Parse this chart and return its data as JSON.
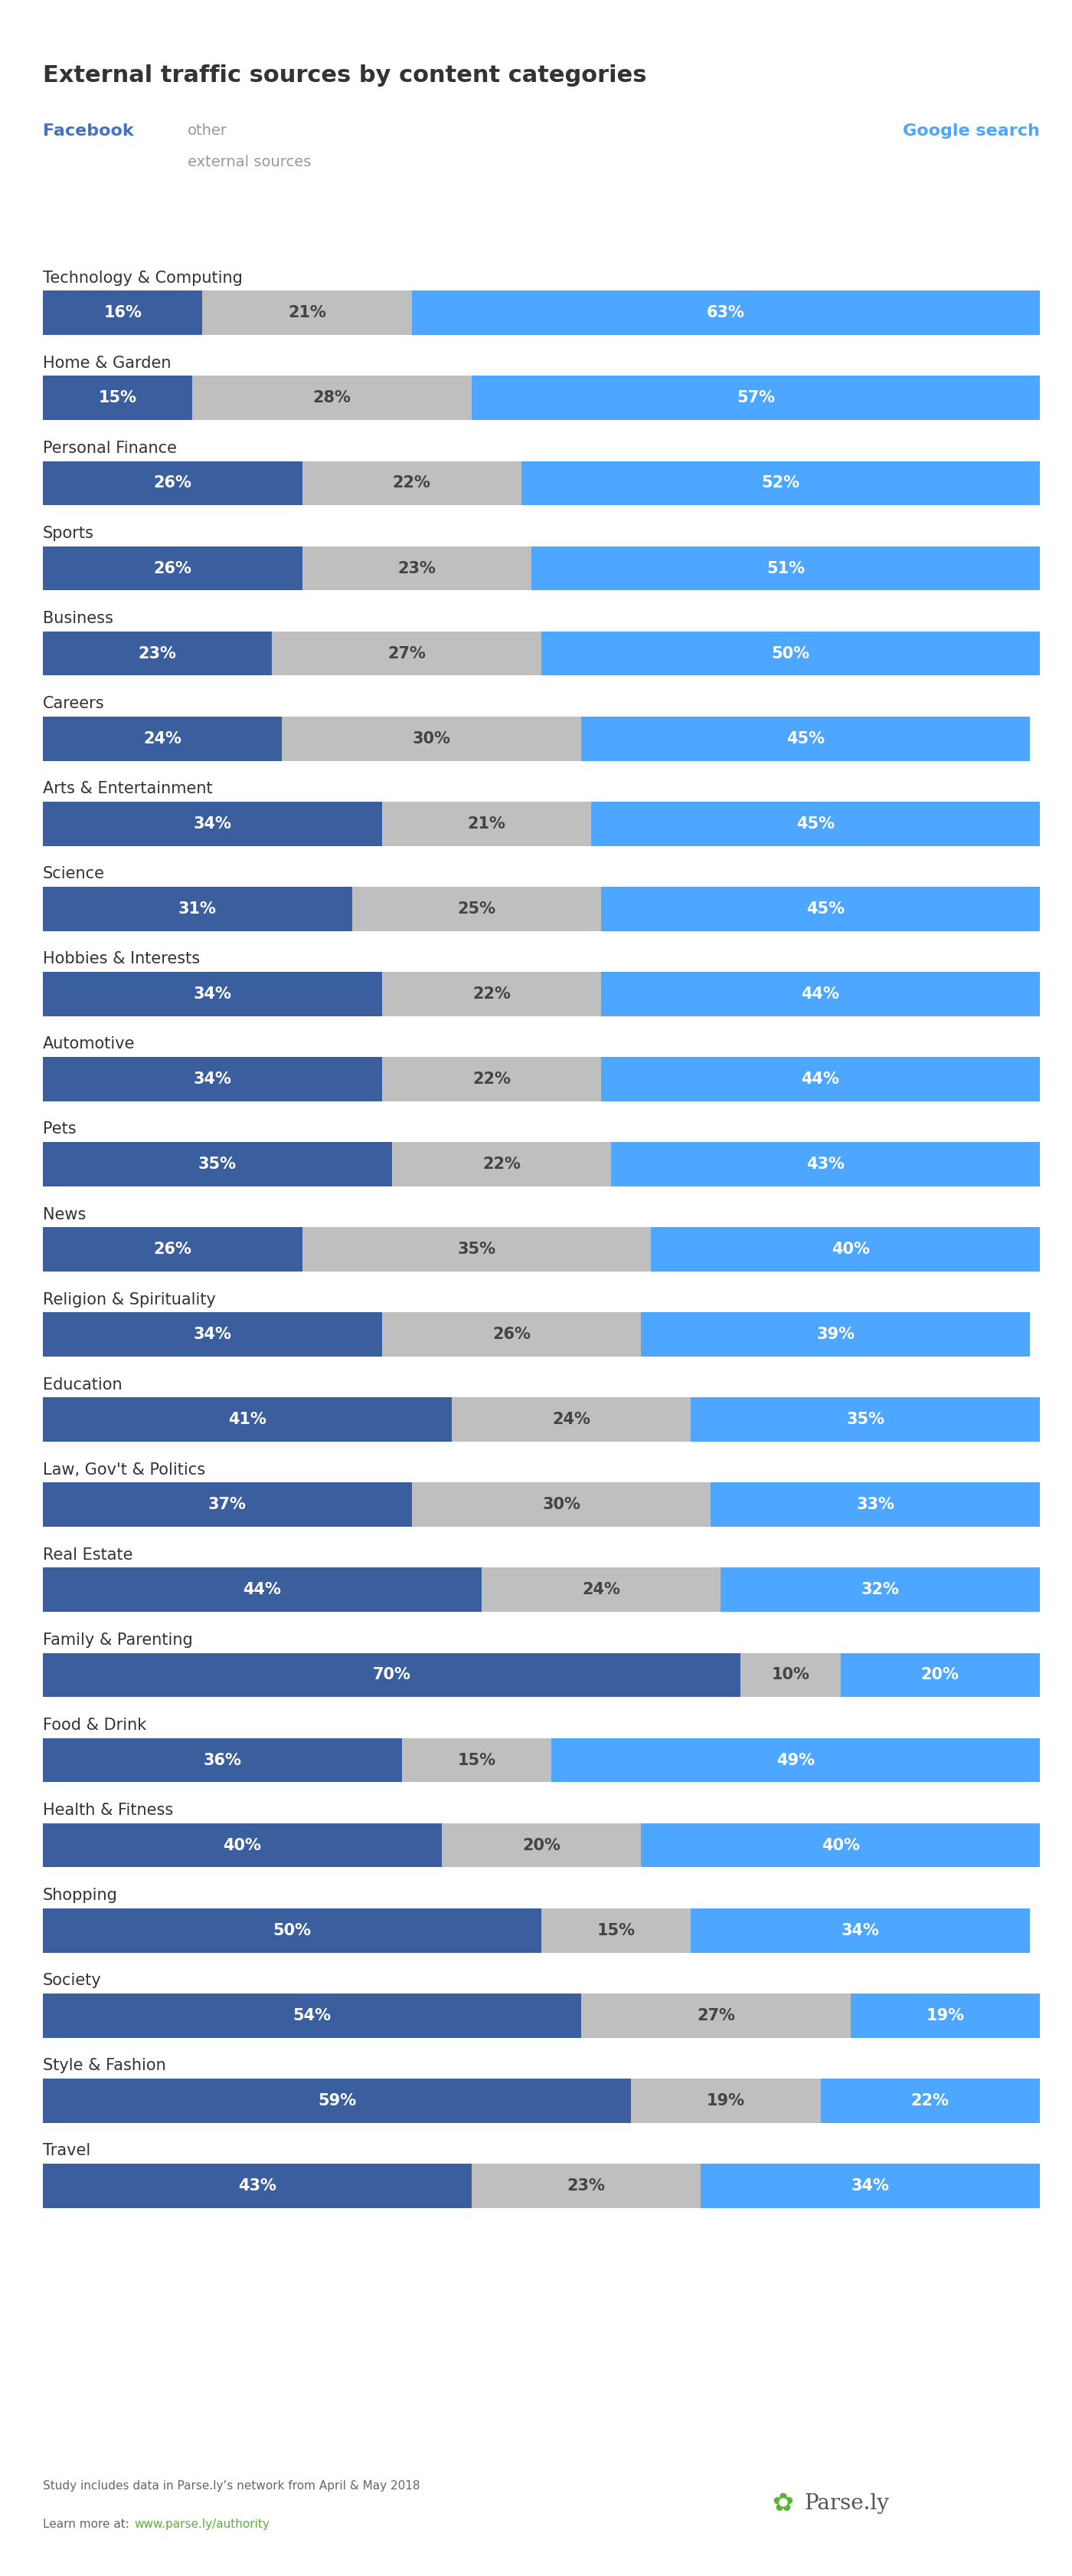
{
  "title": "External traffic sources by content categories",
  "legend": {
    "facebook_label": "Facebook",
    "other_line1": "other",
    "other_line2": "external sources",
    "google_label": "Google search"
  },
  "categories": [
    "Technology & Computing",
    "Home & Garden",
    "Personal Finance",
    "Sports",
    "Business",
    "Careers",
    "Arts & Entertainment",
    "Science",
    "Hobbies & Interests",
    "Automotive",
    "Pets",
    "News",
    "Religion & Spirituality",
    "Education",
    "Law, Gov't & Politics",
    "Real Estate",
    "Family & Parenting",
    "Food & Drink",
    "Health & Fitness",
    "Shopping",
    "Society",
    "Style & Fashion",
    "Travel"
  ],
  "facebook": [
    16,
    15,
    26,
    26,
    23,
    24,
    34,
    31,
    34,
    34,
    35,
    26,
    34,
    41,
    37,
    44,
    70,
    36,
    40,
    50,
    54,
    59,
    43
  ],
  "other": [
    21,
    28,
    22,
    23,
    27,
    30,
    21,
    25,
    22,
    22,
    22,
    35,
    26,
    24,
    30,
    24,
    10,
    15,
    20,
    15,
    27,
    19,
    23
  ],
  "google": [
    63,
    57,
    52,
    51,
    50,
    45,
    45,
    45,
    44,
    44,
    43,
    40,
    39,
    35,
    33,
    32,
    20,
    49,
    40,
    34,
    19,
    22,
    34
  ],
  "facebook_color": "#3b5f9e",
  "other_color": "#c0bfc0",
  "google_color": "#4da6ff",
  "bg_color": "#ffffff",
  "footer_bg": "#e8e8e8",
  "title_color": "#333333",
  "category_color": "#333333",
  "facebook_legend_color": "#4472c4",
  "other_legend_color": "#999999",
  "google_legend_color": "#4da6ff",
  "pct_fb_color": "#ffffff",
  "pct_ot_color": "#444444",
  "pct_gg_color": "#ffffff",
  "bar_height": 0.52,
  "category_fontsize": 15,
  "pct_fontsize": 15,
  "title_fontsize": 22,
  "legend_fontsize": 16,
  "footer_text1": "Study includes data in Parse.ly’s network from April & May 2018",
  "footer_text2": "Learn more at:  ",
  "footer_url": "www.parse.ly/authority",
  "footer_color": "#666666",
  "footer_url_color": "#5ab236",
  "parsely_color": "#5ab236"
}
